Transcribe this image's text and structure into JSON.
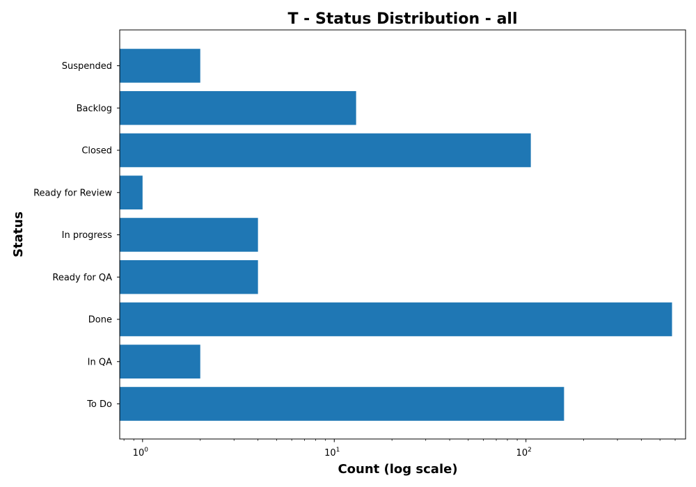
{
  "chart_data": {
    "type": "bar",
    "orientation": "horizontal",
    "title": "T - Status Distribution - all",
    "xlabel": "Count (log scale)",
    "ylabel": "Status",
    "x_scale": "log",
    "xlim": [
      0.76,
      680
    ],
    "x_major_ticks": [
      {
        "value": 1,
        "base": "10",
        "exponent": "0"
      },
      {
        "value": 10,
        "base": "10",
        "exponent": "1"
      },
      {
        "value": 100,
        "base": "10",
        "exponent": "2"
      }
    ],
    "categories": [
      "To Do",
      "In QA",
      "Done",
      "Ready for QA",
      "In progress",
      "Ready for Review",
      "Closed",
      "Backlog",
      "Suspended"
    ],
    "values": [
      158,
      2,
      578,
      4,
      4,
      1,
      106,
      13,
      2
    ],
    "bar_color": "#1f77b4",
    "grid": false,
    "legend": "none"
  }
}
